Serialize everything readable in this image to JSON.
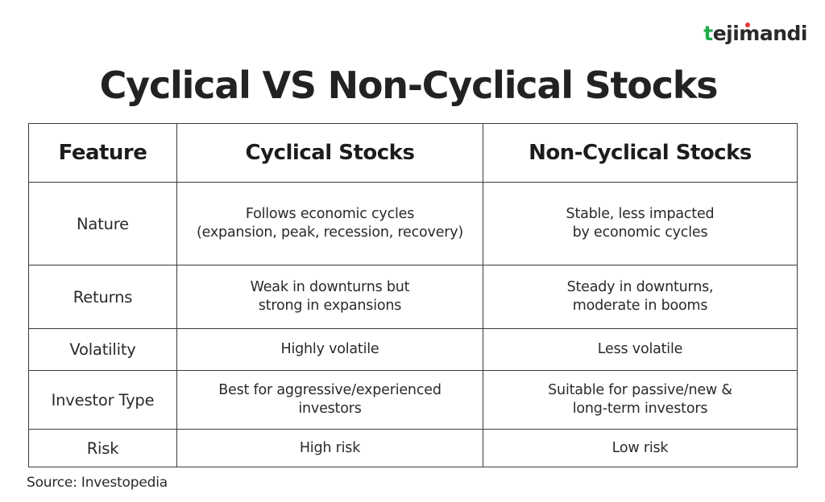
{
  "brand": {
    "logo_parts": [
      "t",
      "eji",
      "m",
      "andi"
    ]
  },
  "title": "Cyclical VS Non-Cyclical Stocks",
  "table": {
    "headers": [
      "Feature",
      "Cyclical Stocks",
      "Non-Cyclical Stocks"
    ],
    "rows": [
      {
        "feature": "Nature",
        "cyclical": "Follows economic cycles\n(expansion, peak, recession, recovery)",
        "non_cyclical": "Stable, less impacted\nby economic cycles"
      },
      {
        "feature": "Returns",
        "cyclical": "Weak in downturns but\nstrong in expansions",
        "non_cyclical": "Steady in downturns,\nmoderate in booms"
      },
      {
        "feature": "Volatility",
        "cyclical": "Highly volatile",
        "non_cyclical": "Less volatile"
      },
      {
        "feature": "Investor Type",
        "cyclical": "Best for aggressive/experienced\ninvestors",
        "non_cyclical": "Suitable for passive/new &\nlong-term investors"
      },
      {
        "feature": "Risk",
        "cyclical": "High risk",
        "non_cyclical": "Low risk"
      }
    ]
  },
  "source": "Source: Investopedia",
  "colors": {
    "brand_green": "#1faa4b",
    "brand_red": "#e53935",
    "text": "#1c1c1c",
    "border": "#3a3a3a"
  }
}
